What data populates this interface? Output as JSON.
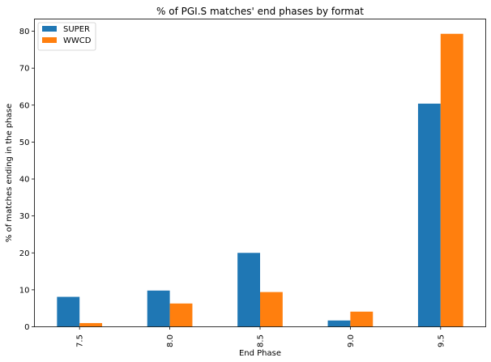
{
  "chart_data": {
    "type": "bar",
    "title": "% of PGI.S matches' end phases by format",
    "xlabel": "End Phase",
    "ylabel": "% of matches ending in the phase",
    "categories": [
      "7.5",
      "8.0",
      "8.5",
      "9.0",
      "9.5"
    ],
    "series": [
      {
        "name": "SUPER",
        "color": "#1f77b4",
        "values": [
          8.1,
          9.8,
          20.0,
          1.7,
          60.4
        ]
      },
      {
        "name": "WWCD",
        "color": "#ff7f0e",
        "values": [
          1.0,
          6.3,
          9.4,
          4.1,
          79.3
        ]
      }
    ],
    "ylim": [
      0,
      83.3
    ],
    "yticks": [
      0,
      10,
      20,
      30,
      40,
      50,
      60,
      70,
      80
    ],
    "legend_position": "top-left",
    "grid": false
  }
}
